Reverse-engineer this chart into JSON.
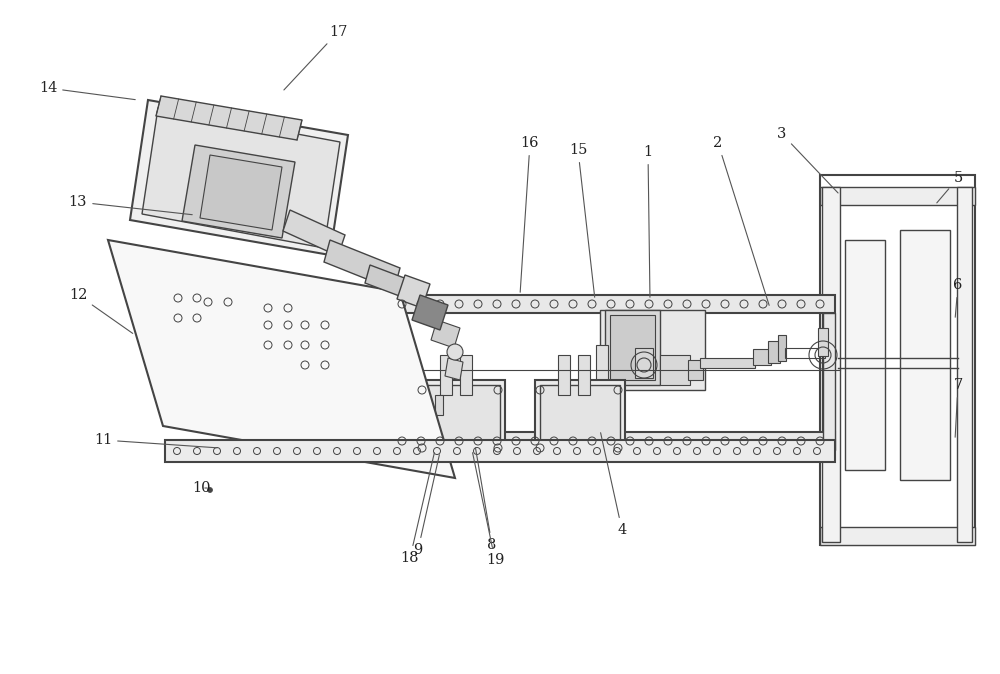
{
  "bg_color": "#ffffff",
  "lc": "#444444",
  "lc2": "#333333",
  "figsize": [
    10.0,
    6.74
  ],
  "dpi": 100,
  "labels_data": [
    [
      1,
      648,
      152,
      650,
      300
    ],
    [
      2,
      718,
      143,
      770,
      308
    ],
    [
      3,
      782,
      134,
      840,
      195
    ],
    [
      4,
      622,
      530,
      600,
      430
    ],
    [
      5,
      958,
      178,
      935,
      205
    ],
    [
      6,
      958,
      285,
      955,
      320
    ],
    [
      7,
      958,
      385,
      955,
      440
    ],
    [
      8,
      492,
      545,
      475,
      445
    ],
    [
      9,
      418,
      550,
      440,
      452
    ],
    [
      10,
      202,
      488,
      210,
      488
    ],
    [
      11,
      103,
      440,
      220,
      448
    ],
    [
      12,
      78,
      295,
      135,
      335
    ],
    [
      13,
      78,
      202,
      195,
      215
    ],
    [
      14,
      48,
      88,
      138,
      100
    ],
    [
      15,
      578,
      150,
      595,
      300
    ],
    [
      16,
      530,
      143,
      520,
      295
    ],
    [
      17,
      338,
      32,
      282,
      92
    ],
    [
      18,
      410,
      558,
      435,
      450
    ],
    [
      19,
      495,
      560,
      472,
      450
    ]
  ]
}
